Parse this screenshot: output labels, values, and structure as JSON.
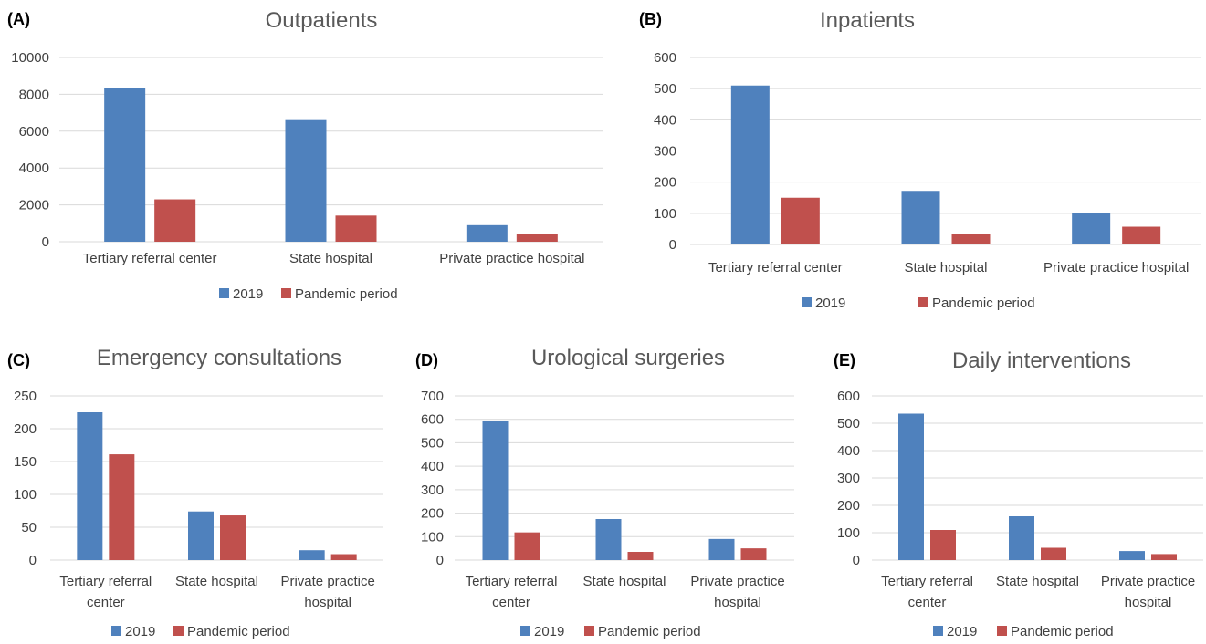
{
  "chart_data": [
    {
      "panel": "(A)",
      "type": "bar",
      "title": "Outpatients",
      "categories": [
        "Tertiary referral center",
        "State hospital",
        "Private practice hospital"
      ],
      "category_lines": [
        [
          "Tertiary referral center"
        ],
        [
          "State hospital"
        ],
        [
          "Private practice hospital"
        ]
      ],
      "series": [
        {
          "name": "2019",
          "values": [
            8350,
            6600,
            900
          ]
        },
        {
          "name": "Pandemic period",
          "values": [
            2300,
            1420,
            430
          ]
        }
      ],
      "ylim": [
        0,
        10000
      ],
      "yticks": [
        0,
        2000,
        4000,
        6000,
        8000,
        10000
      ],
      "grid": true,
      "legend": "bottom"
    },
    {
      "panel": "(B)",
      "type": "bar",
      "title": "Inpatients",
      "categories": [
        "Tertiary referral center",
        "State hospital",
        "Private practice hospital"
      ],
      "category_lines": [
        [
          "Tertiary referral center"
        ],
        [
          "State hospital"
        ],
        [
          "Private practice hospital"
        ]
      ],
      "series": [
        {
          "name": "2019",
          "values": [
            510,
            172,
            100
          ]
        },
        {
          "name": "Pandemic period",
          "values": [
            150,
            35,
            57
          ]
        }
      ],
      "ylim": [
        0,
        600
      ],
      "yticks": [
        0,
        100,
        200,
        300,
        400,
        500,
        600
      ],
      "grid": true,
      "legend": "bottom"
    },
    {
      "panel": "(C)",
      "type": "bar",
      "title": "Emergency consultations",
      "categories": [
        "Tertiary referral center",
        "State hospital",
        "Private practice hospital"
      ],
      "category_lines": [
        [
          "Tertiary referral",
          "center"
        ],
        [
          "State hospital"
        ],
        [
          "Private practice",
          "hospital"
        ]
      ],
      "series": [
        {
          "name": "2019",
          "values": [
            225,
            74,
            15
          ]
        },
        {
          "name": "Pandemic period",
          "values": [
            161,
            68,
            9
          ]
        }
      ],
      "ylim": [
        0,
        250
      ],
      "yticks": [
        0,
        50,
        100,
        150,
        200,
        250
      ],
      "grid": true,
      "legend": "bottom"
    },
    {
      "panel": "(D)",
      "type": "bar",
      "title": "Urological surgeries",
      "categories": [
        "Tertiary referral center",
        "State hospital",
        "Private practice hospital"
      ],
      "category_lines": [
        [
          "Tertiary referral",
          "center"
        ],
        [
          "State hospital"
        ],
        [
          "Private practice",
          "hospital"
        ]
      ],
      "series": [
        {
          "name": "2019",
          "values": [
            592,
            175,
            90
          ]
        },
        {
          "name": "Pandemic period",
          "values": [
            118,
            35,
            50
          ]
        }
      ],
      "ylim": [
        0,
        700
      ],
      "yticks": [
        0,
        100,
        200,
        300,
        400,
        500,
        600,
        700
      ],
      "grid": true,
      "legend": "bottom"
    },
    {
      "panel": "(E)",
      "type": "bar",
      "title": "Daily interventions",
      "categories": [
        "Tertiary referral center",
        "State hospital",
        "Private practice hospital"
      ],
      "category_lines": [
        [
          "Tertiary referral",
          "center"
        ],
        [
          "State hospital"
        ],
        [
          "Private practice",
          "hospital"
        ]
      ],
      "series": [
        {
          "name": "2019",
          "values": [
            535,
            160,
            33
          ]
        },
        {
          "name": "Pandemic period",
          "values": [
            110,
            45,
            22
          ]
        }
      ],
      "ylim": [
        0,
        600
      ],
      "yticks": [
        0,
        100,
        200,
        300,
        400,
        500,
        600
      ],
      "grid": true,
      "legend": "bottom"
    }
  ],
  "colors": {
    "2019": "#4f81bd",
    "Pandemic period": "#c0504d",
    "grid": "#d9d9d9",
    "text": "#404040"
  }
}
